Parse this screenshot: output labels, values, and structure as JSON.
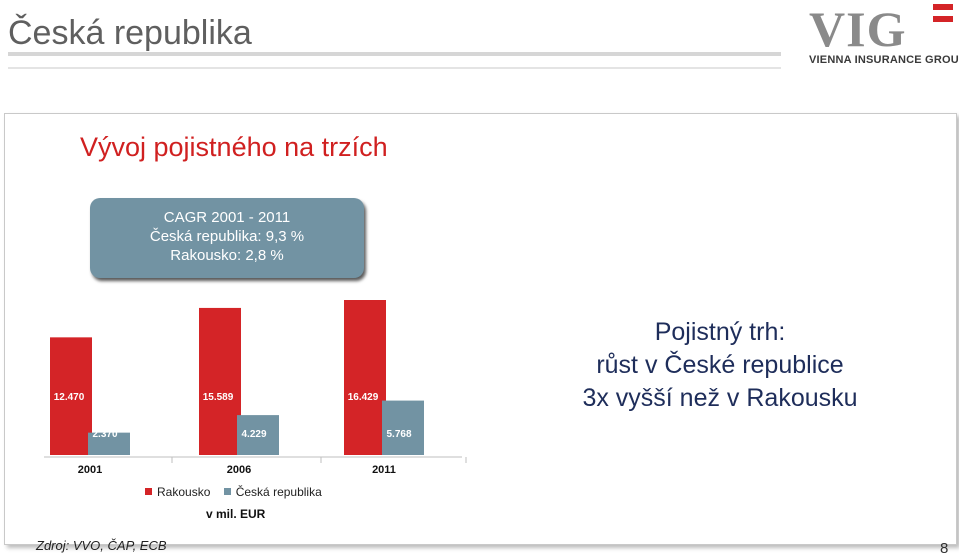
{
  "header": {
    "title": "Česká republika",
    "logo_text": "VIG",
    "logo_subtitle": "VIENNA INSURANCE GROUP"
  },
  "slide": {
    "section_title": "Vývoj pojistného na trzích",
    "cagr_lines": [
      "CAGR 2001 - 2011",
      "Česká republika: 9,3 %",
      "Rakousko:  2,8 %"
    ],
    "note_lines": [
      "Pojistný trh:",
      "růst v České republice",
      "3x vyšší než v Rakousku"
    ],
    "unit": "v mil. EUR",
    "source": "Zdroj: VVO, ČAP, ECB",
    "page_number": "8"
  },
  "colors": {
    "rakousko": "#d42427",
    "ceska": "#7293a3",
    "title_red": "#d02020",
    "note_navy": "#1e2d5a"
  },
  "chart_data": {
    "type": "bar",
    "categories": [
      "2001",
      "2006",
      "2011"
    ],
    "series": [
      {
        "name": "Rakousko",
        "values": [
          12470,
          15589,
          16429
        ],
        "labels": [
          "12.470",
          "15.589",
          "16.429"
        ]
      },
      {
        "name": "Česká republika",
        "values": [
          2370,
          4229,
          5768
        ],
        "labels": [
          "2.370",
          "4.229",
          "5.768"
        ]
      }
    ],
    "ylim": [
      0,
      16429
    ],
    "legend": "bottom",
    "grid": false
  }
}
